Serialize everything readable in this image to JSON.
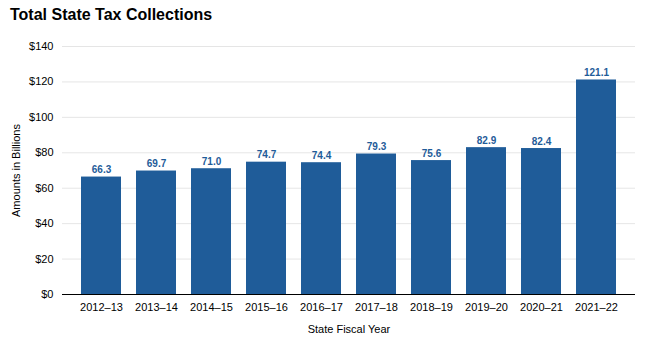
{
  "chart_data": {
    "type": "bar",
    "title": "Total State Tax Collections",
    "xlabel": "State Fiscal Year",
    "ylabel": "Amounts in Billions",
    "categories": [
      "2012–13",
      "2013–14",
      "2014–15",
      "2015–16",
      "2016–17",
      "2017–18",
      "2018–19",
      "2019–20",
      "2020–21",
      "2021–22"
    ],
    "values": [
      66.3,
      69.7,
      71.0,
      74.7,
      74.4,
      79.3,
      75.6,
      82.9,
      82.4,
      121.1
    ],
    "value_labels": [
      "66.3",
      "69.7",
      "71.0",
      "74.7",
      "74.4",
      "79.3",
      "75.6",
      "82.9",
      "82.4",
      "121.1"
    ],
    "color": "#1F5C99",
    "ylim": [
      0,
      140
    ],
    "yticks": [
      {
        "value": 0,
        "label": "$0"
      },
      {
        "value": 20,
        "label": "$20"
      },
      {
        "value": 40,
        "label": "$40"
      },
      {
        "value": 60,
        "label": "$60"
      },
      {
        "value": 80,
        "label": "$80"
      },
      {
        "value": 100,
        "label": "$100"
      },
      {
        "value": 120,
        "label": "$120"
      },
      {
        "value": 140,
        "label": "$140"
      }
    ],
    "grid": true,
    "data_labels": true
  }
}
